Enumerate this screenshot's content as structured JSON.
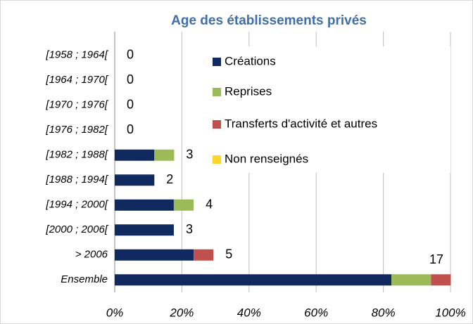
{
  "chart_data": {
    "type": "bar",
    "orientation": "horizontal",
    "stacked": true,
    "title": "Age des établissements privés",
    "categories": [
      "[1958 ; 1964[",
      "[1964 ; 1970[",
      "[1970 ; 1976[",
      "[1976 ; 1982[",
      "[1982 ; 1988[",
      "[1988 ; 1994[",
      "[1994 ; 2000[",
      "[2000 ; 2006[",
      "> 2006",
      "Ensemble"
    ],
    "series": [
      {
        "name": "Créations",
        "color": "#10295f",
        "values": [
          0,
          0,
          0,
          0,
          11.8,
          11.8,
          17.6,
          17.6,
          23.5,
          82.4
        ]
      },
      {
        "name": "Reprises",
        "color": "#9bbb59",
        "values": [
          0,
          0,
          0,
          0,
          5.9,
          0,
          5.9,
          0,
          0,
          11.8
        ]
      },
      {
        "name": "Transferts d'activité et autres",
        "color": "#c0504d",
        "values": [
          0,
          0,
          0,
          0,
          0,
          0,
          0,
          0,
          5.9,
          5.9
        ]
      },
      {
        "name": "Non renseignés",
        "color": "#ffd52b",
        "values": [
          0,
          0,
          0,
          0,
          0,
          0,
          0,
          0,
          0,
          0
        ]
      }
    ],
    "counts": [
      0,
      0,
      0,
      0,
      3,
      2,
      4,
      3,
      5,
      17
    ],
    "xlim": [
      0,
      100
    ],
    "xticks": [
      {
        "value": 0,
        "label": "0%"
      },
      {
        "value": 20,
        "label": "20%"
      },
      {
        "value": 40,
        "label": "40%"
      },
      {
        "value": 60,
        "label": "60%"
      },
      {
        "value": 80,
        "label": "80%"
      },
      {
        "value": 100,
        "label": "100%"
      }
    ],
    "grid": true
  }
}
